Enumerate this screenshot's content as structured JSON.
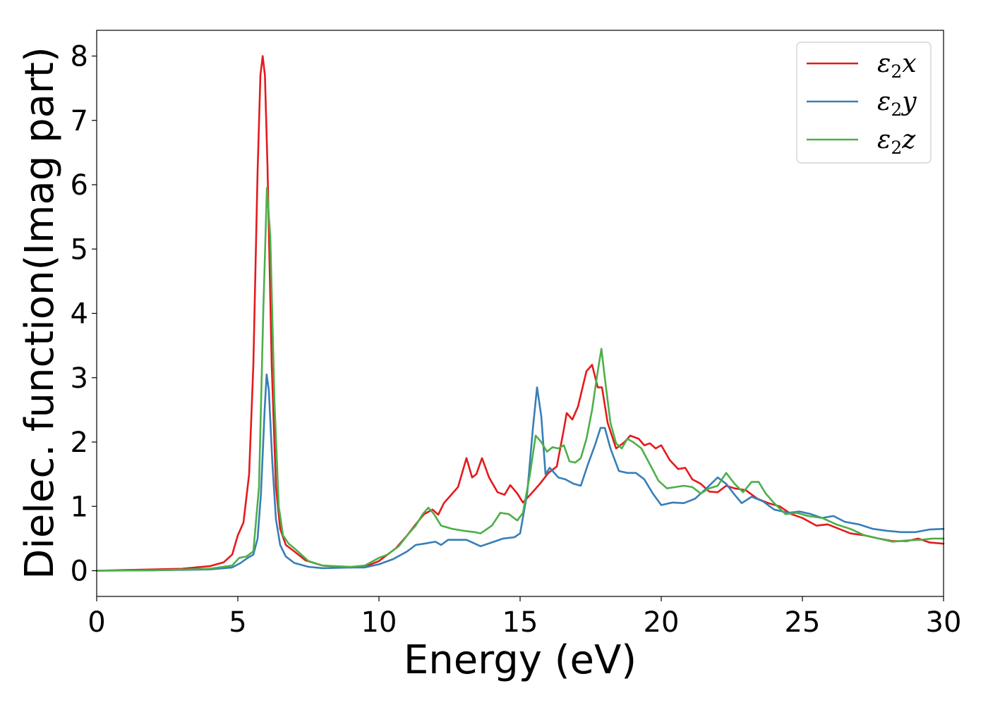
{
  "chart_data": {
    "type": "line",
    "xlabel": "Energy (eV)",
    "ylabel": "Dielec. function(Imag part)",
    "xlim": [
      0,
      30
    ],
    "ylim": [
      -0.4,
      8.4
    ],
    "xticks": [
      0,
      5,
      10,
      15,
      20,
      25,
      30
    ],
    "yticks": [
      0,
      1,
      2,
      3,
      4,
      5,
      6,
      7,
      8
    ],
    "grid": false,
    "legend_position": "top-right",
    "series": [
      {
        "name": "ε₂x",
        "legend_base": "ε",
        "legend_sub": "2",
        "legend_suffix": "x",
        "color": "#e41a1c",
        "points": [
          [
            0,
            0.0
          ],
          [
            1,
            0.01
          ],
          [
            2,
            0.02
          ],
          [
            3,
            0.03
          ],
          [
            4,
            0.07
          ],
          [
            4.5,
            0.13
          ],
          [
            4.8,
            0.25
          ],
          [
            5.0,
            0.55
          ],
          [
            5.2,
            0.75
          ],
          [
            5.4,
            1.5
          ],
          [
            5.55,
            3.2
          ],
          [
            5.7,
            6.2
          ],
          [
            5.8,
            7.7
          ],
          [
            5.88,
            8.0
          ],
          [
            5.96,
            7.7
          ],
          [
            6.05,
            6.3
          ],
          [
            6.2,
            3.2
          ],
          [
            6.35,
            1.3
          ],
          [
            6.5,
            0.65
          ],
          [
            6.7,
            0.4
          ],
          [
            7.0,
            0.3
          ],
          [
            7.4,
            0.16
          ],
          [
            8,
            0.08
          ],
          [
            9,
            0.05
          ],
          [
            9.5,
            0.06
          ],
          [
            10,
            0.15
          ],
          [
            10.3,
            0.25
          ],
          [
            10.6,
            0.35
          ],
          [
            11,
            0.55
          ],
          [
            11.3,
            0.72
          ],
          [
            11.6,
            0.88
          ],
          [
            11.9,
            0.95
          ],
          [
            12.1,
            0.87
          ],
          [
            12.3,
            1.05
          ],
          [
            12.6,
            1.2
          ],
          [
            12.8,
            1.3
          ],
          [
            13.1,
            1.75
          ],
          [
            13.3,
            1.45
          ],
          [
            13.45,
            1.5
          ],
          [
            13.65,
            1.75
          ],
          [
            13.9,
            1.45
          ],
          [
            14.2,
            1.22
          ],
          [
            14.45,
            1.18
          ],
          [
            14.65,
            1.33
          ],
          [
            14.9,
            1.2
          ],
          [
            15.1,
            1.06
          ],
          [
            15.4,
            1.2
          ],
          [
            15.7,
            1.35
          ],
          [
            16.0,
            1.52
          ],
          [
            16.3,
            1.62
          ],
          [
            16.55,
            2.2
          ],
          [
            16.65,
            2.45
          ],
          [
            16.85,
            2.35
          ],
          [
            17.05,
            2.55
          ],
          [
            17.35,
            3.1
          ],
          [
            17.55,
            3.2
          ],
          [
            17.75,
            2.85
          ],
          [
            17.9,
            2.85
          ],
          [
            18.1,
            2.3
          ],
          [
            18.4,
            1.9
          ],
          [
            18.7,
            2.0
          ],
          [
            18.9,
            2.1
          ],
          [
            19.2,
            2.05
          ],
          [
            19.4,
            1.95
          ],
          [
            19.6,
            1.98
          ],
          [
            19.8,
            1.9
          ],
          [
            20.0,
            1.95
          ],
          [
            20.3,
            1.72
          ],
          [
            20.6,
            1.58
          ],
          [
            20.85,
            1.6
          ],
          [
            21.1,
            1.42
          ],
          [
            21.4,
            1.35
          ],
          [
            21.7,
            1.23
          ],
          [
            22.0,
            1.22
          ],
          [
            22.3,
            1.32
          ],
          [
            22.6,
            1.28
          ],
          [
            23.0,
            1.25
          ],
          [
            23.4,
            1.12
          ],
          [
            23.8,
            1.05
          ],
          [
            24.2,
            1.0
          ],
          [
            24.6,
            0.88
          ],
          [
            25.0,
            0.82
          ],
          [
            25.5,
            0.7
          ],
          [
            25.9,
            0.72
          ],
          [
            26.3,
            0.65
          ],
          [
            26.7,
            0.58
          ],
          [
            27.2,
            0.55
          ],
          [
            27.7,
            0.5
          ],
          [
            28.2,
            0.46
          ],
          [
            28.7,
            0.46
          ],
          [
            29.1,
            0.5
          ],
          [
            29.5,
            0.44
          ],
          [
            30,
            0.42
          ]
        ]
      },
      {
        "name": "ε₂y",
        "legend_base": "ε",
        "legend_sub": "2",
        "legend_suffix": "y",
        "color": "#377eb8",
        "points": [
          [
            0,
            0.0
          ],
          [
            2,
            0.005
          ],
          [
            4,
            0.02
          ],
          [
            4.8,
            0.05
          ],
          [
            5.1,
            0.12
          ],
          [
            5.35,
            0.2
          ],
          [
            5.55,
            0.25
          ],
          [
            5.7,
            0.5
          ],
          [
            5.82,
            1.2
          ],
          [
            5.95,
            2.5
          ],
          [
            6.02,
            3.05
          ],
          [
            6.1,
            2.8
          ],
          [
            6.22,
            1.7
          ],
          [
            6.35,
            0.8
          ],
          [
            6.5,
            0.4
          ],
          [
            6.7,
            0.22
          ],
          [
            7.0,
            0.12
          ],
          [
            7.5,
            0.06
          ],
          [
            8,
            0.04
          ],
          [
            9,
            0.05
          ],
          [
            9.5,
            0.05
          ],
          [
            10,
            0.1
          ],
          [
            10.5,
            0.18
          ],
          [
            11,
            0.3
          ],
          [
            11.3,
            0.4
          ],
          [
            11.6,
            0.42
          ],
          [
            12.0,
            0.45
          ],
          [
            12.2,
            0.4
          ],
          [
            12.45,
            0.48
          ],
          [
            12.8,
            0.48
          ],
          [
            13.1,
            0.48
          ],
          [
            13.4,
            0.42
          ],
          [
            13.6,
            0.38
          ],
          [
            14.0,
            0.44
          ],
          [
            14.4,
            0.5
          ],
          [
            14.8,
            0.52
          ],
          [
            15.0,
            0.58
          ],
          [
            15.25,
            1.2
          ],
          [
            15.45,
            2.2
          ],
          [
            15.6,
            2.85
          ],
          [
            15.75,
            2.4
          ],
          [
            15.9,
            1.5
          ],
          [
            16.05,
            1.6
          ],
          [
            16.35,
            1.45
          ],
          [
            16.6,
            1.42
          ],
          [
            16.9,
            1.35
          ],
          [
            17.15,
            1.32
          ],
          [
            17.4,
            1.65
          ],
          [
            17.65,
            1.95
          ],
          [
            17.85,
            2.22
          ],
          [
            18.0,
            2.22
          ],
          [
            18.2,
            1.9
          ],
          [
            18.5,
            1.55
          ],
          [
            18.8,
            1.52
          ],
          [
            19.1,
            1.52
          ],
          [
            19.4,
            1.42
          ],
          [
            19.7,
            1.2
          ],
          [
            20.0,
            1.02
          ],
          [
            20.4,
            1.06
          ],
          [
            20.8,
            1.05
          ],
          [
            21.2,
            1.12
          ],
          [
            21.6,
            1.28
          ],
          [
            22.0,
            1.45
          ],
          [
            22.3,
            1.35
          ],
          [
            22.6,
            1.18
          ],
          [
            22.85,
            1.05
          ],
          [
            23.2,
            1.15
          ],
          [
            23.6,
            1.08
          ],
          [
            24.0,
            0.95
          ],
          [
            24.5,
            0.9
          ],
          [
            24.9,
            0.92
          ],
          [
            25.3,
            0.88
          ],
          [
            25.7,
            0.82
          ],
          [
            26.1,
            0.85
          ],
          [
            26.5,
            0.76
          ],
          [
            27.0,
            0.72
          ],
          [
            27.5,
            0.65
          ],
          [
            28.0,
            0.62
          ],
          [
            28.5,
            0.6
          ],
          [
            29.0,
            0.6
          ],
          [
            29.5,
            0.64
          ],
          [
            30,
            0.65
          ]
        ]
      },
      {
        "name": "ε₂z",
        "legend_base": "ε",
        "legend_sub": "2",
        "legend_suffix": "z",
        "color": "#4daf4a",
        "points": [
          [
            0,
            0.0
          ],
          [
            2,
            0.005
          ],
          [
            4,
            0.03
          ],
          [
            4.8,
            0.08
          ],
          [
            5.05,
            0.2
          ],
          [
            5.3,
            0.22
          ],
          [
            5.55,
            0.3
          ],
          [
            5.75,
            1.3
          ],
          [
            5.9,
            4.0
          ],
          [
            6.03,
            5.95
          ],
          [
            6.15,
            5.2
          ],
          [
            6.3,
            2.6
          ],
          [
            6.45,
            1.0
          ],
          [
            6.6,
            0.55
          ],
          [
            6.8,
            0.42
          ],
          [
            7.0,
            0.35
          ],
          [
            7.5,
            0.15
          ],
          [
            8,
            0.08
          ],
          [
            9,
            0.06
          ],
          [
            9.5,
            0.08
          ],
          [
            10,
            0.2
          ],
          [
            10.3,
            0.25
          ],
          [
            10.7,
            0.38
          ],
          [
            11.0,
            0.55
          ],
          [
            11.3,
            0.7
          ],
          [
            11.55,
            0.88
          ],
          [
            11.75,
            0.98
          ],
          [
            11.95,
            0.88
          ],
          [
            12.2,
            0.7
          ],
          [
            12.6,
            0.65
          ],
          [
            13.0,
            0.62
          ],
          [
            13.4,
            0.6
          ],
          [
            13.6,
            0.58
          ],
          [
            14.0,
            0.7
          ],
          [
            14.3,
            0.9
          ],
          [
            14.6,
            0.88
          ],
          [
            14.9,
            0.78
          ],
          [
            15.1,
            0.9
          ],
          [
            15.35,
            1.5
          ],
          [
            15.55,
            2.1
          ],
          [
            15.75,
            2.0
          ],
          [
            15.95,
            1.85
          ],
          [
            16.15,
            1.92
          ],
          [
            16.35,
            1.9
          ],
          [
            16.55,
            1.95
          ],
          [
            16.75,
            1.7
          ],
          [
            16.95,
            1.68
          ],
          [
            17.15,
            1.75
          ],
          [
            17.35,
            2.05
          ],
          [
            17.55,
            2.5
          ],
          [
            17.75,
            3.1
          ],
          [
            17.88,
            3.45
          ],
          [
            18.0,
            3.0
          ],
          [
            18.2,
            2.3
          ],
          [
            18.4,
            1.98
          ],
          [
            18.6,
            1.9
          ],
          [
            18.8,
            2.05
          ],
          [
            19.0,
            2.0
          ],
          [
            19.3,
            1.9
          ],
          [
            19.6,
            1.65
          ],
          [
            19.9,
            1.4
          ],
          [
            20.2,
            1.28
          ],
          [
            20.5,
            1.3
          ],
          [
            20.8,
            1.32
          ],
          [
            21.1,
            1.3
          ],
          [
            21.4,
            1.2
          ],
          [
            21.7,
            1.28
          ],
          [
            22.0,
            1.32
          ],
          [
            22.3,
            1.52
          ],
          [
            22.6,
            1.35
          ],
          [
            22.9,
            1.22
          ],
          [
            23.2,
            1.38
          ],
          [
            23.45,
            1.38
          ],
          [
            23.7,
            1.2
          ],
          [
            24.0,
            1.05
          ],
          [
            24.4,
            0.88
          ],
          [
            24.8,
            0.9
          ],
          [
            25.2,
            0.85
          ],
          [
            25.7,
            0.82
          ],
          [
            26.2,
            0.72
          ],
          [
            26.7,
            0.65
          ],
          [
            27.2,
            0.55
          ],
          [
            27.7,
            0.5
          ],
          [
            28.2,
            0.45
          ],
          [
            28.7,
            0.47
          ],
          [
            29.2,
            0.48
          ],
          [
            29.6,
            0.5
          ],
          [
            30,
            0.5
          ]
        ]
      }
    ]
  }
}
